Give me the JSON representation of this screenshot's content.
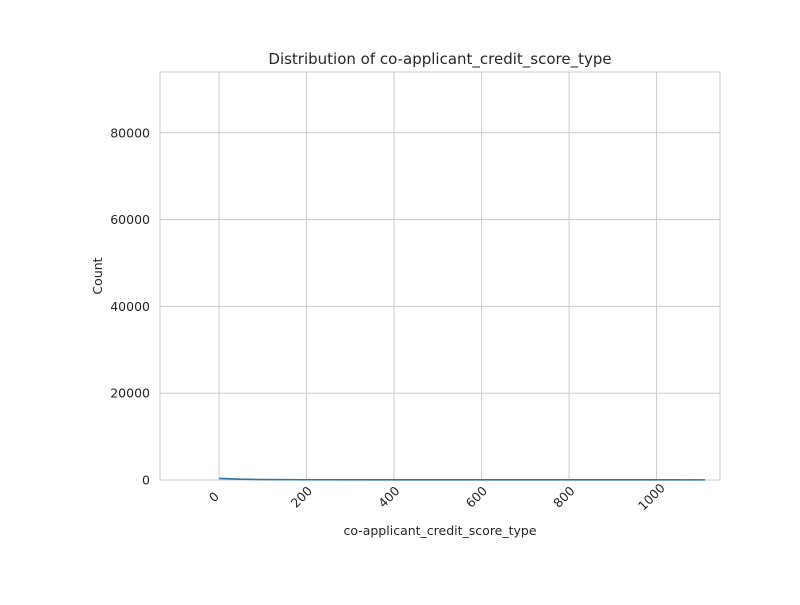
{
  "chart_data": {
    "type": "area",
    "title": "Distribution of co-applicant_credit_score_type",
    "xlabel": "co-applicant_credit_score_type",
    "ylabel": "Count",
    "xlim": [
      -135,
      1145
    ],
    "ylim": [
      0,
      94000
    ],
    "xticks": [
      0,
      200,
      400,
      600,
      800,
      1000
    ],
    "yticks": [
      0,
      20000,
      40000,
      60000,
      80000
    ],
    "xtick_labels": [
      "0",
      "200",
      "400",
      "600",
      "800",
      "1000"
    ],
    "ytick_labels": [
      "0",
      "20000",
      "40000",
      "60000",
      "80000"
    ],
    "xtick_rotation": 45,
    "grid": true,
    "legend": "none",
    "series": [
      {
        "color": "#3274a1",
        "x": [
          0,
          10,
          25,
          50,
          100,
          200,
          400,
          600,
          800,
          1000,
          1111
        ],
        "y": [
          350,
          330,
          280,
          180,
          90,
          60,
          50,
          45,
          40,
          35,
          30
        ]
      }
    ]
  }
}
